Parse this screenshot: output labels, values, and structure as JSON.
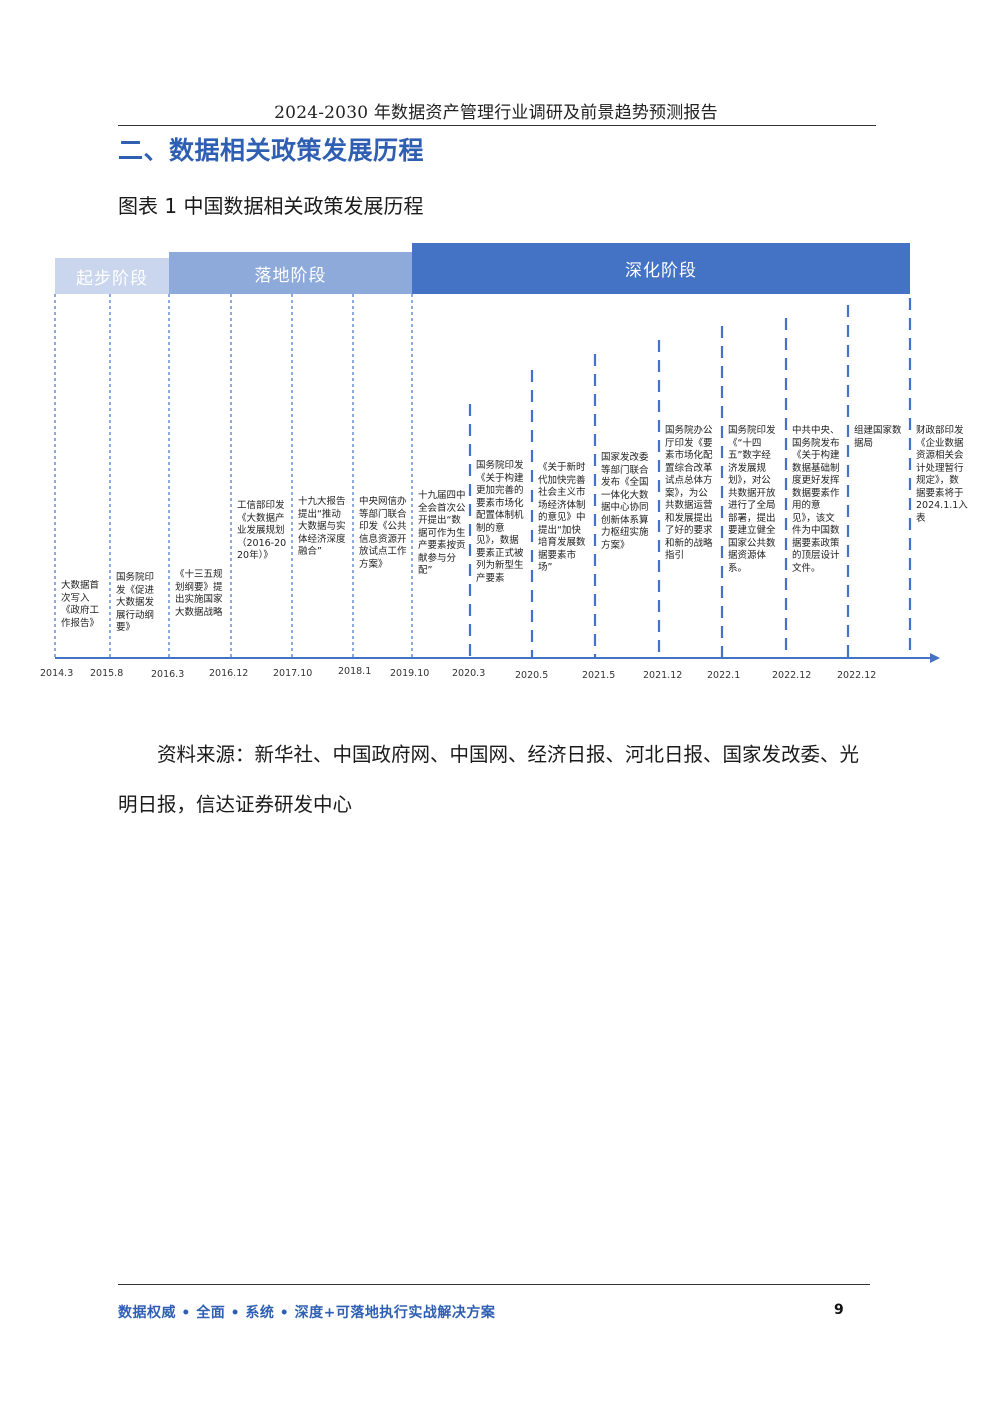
{
  "header": {
    "title": "2024-2030 年数据资产管理行业调研及前景趋势预测报告"
  },
  "section": {
    "title": "二、数据相关政策发展历程"
  },
  "figure": {
    "caption": "图表 1 中国数据相关政策发展历程",
    "phases": [
      {
        "label": "起步阶段",
        "color": "#c9d6ee"
      },
      {
        "label": "落地阶段",
        "color": "#8eaadb"
      },
      {
        "label": "深化阶段",
        "color": "#4472c4"
      }
    ],
    "axis_color": "#4472c4",
    "events": [
      {
        "date": "2014.3",
        "text": "大数据首次写入《政府工作报告》"
      },
      {
        "date": "2015.8",
        "text": "国务院印发《促进大数据发展行动纲要》"
      },
      {
        "date": "2016.3",
        "text": "《十三五规划纲要》提出实施国家大数据战略"
      },
      {
        "date": "2016.12",
        "text": "工信部印发《大数据产业发展规划（2016-2020年）》"
      },
      {
        "date": "2017.10",
        "text": "十九大报告提出“推动大数据与实体经济深度融合”"
      },
      {
        "date": "2018.1",
        "text": "中央网信办等部门联合印发《公共信息资源开放试点工作方案》"
      },
      {
        "date": "2019.10",
        "text": "十九届四中全会首次公开提出“数据可作为生产要素按贡献参与分配”"
      },
      {
        "date": "2020.3",
        "text": "国务院印发《关于构建更加完善的要素市场化配置体制机制的意见》，数据要素正式被列为新型生产要素"
      },
      {
        "date": "2020.5",
        "text": "《关于新时代加快完善社会主义市场经济体制的意见》中提出“加快培育发展数据要素市场”"
      },
      {
        "date": "2021.5",
        "text": "国家发改委等部门联合发布《全国一体化大数据中心协同创新体系算力枢纽实施方案》"
      },
      {
        "date": "2021.12",
        "text": "国务院办公厅印发《要素市场化配置综合改革试点总体方案》，为公共数据运营和发展提出了好的要求和新的战略指引"
      },
      {
        "date": "2022.1",
        "text": "国务院印发《“十四五”数字经济发展规划》，对公共数据开放进行了全局部署，提出要建立健全国家公共数据资源体系。"
      },
      {
        "date": "2022.12",
        "text": "中共中央、国务院发布《关于构建数据基础制度更好发挥数据要素作用的意见》，该文件为中国数据要素政策的顶层设计文件。"
      },
      {
        "date": "2022.12",
        "text": "组建国家数据局"
      },
      {
        "date": "",
        "text": "财政部印发《企业数据资源相关会计处理暂行规定》，数据要素将于2024.1.1入表"
      }
    ]
  },
  "source_note": "资料来源：新华社、中国政府网、中国网、经济日报、河北日报、国家发改委、光明日报，信达证券研发中心",
  "footer": {
    "slogan": "数据权威 • 全面 • 系统 • 深度+可落地执行实战解决方案",
    "page_number": "9"
  }
}
